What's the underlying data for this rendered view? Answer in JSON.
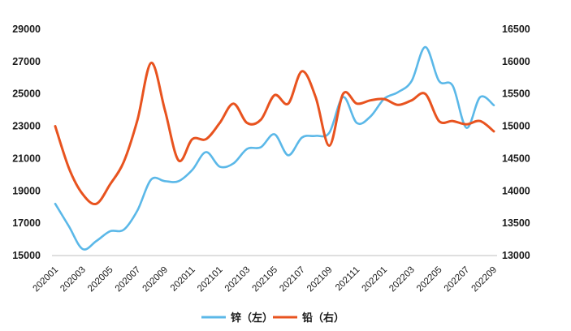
{
  "chart_data": {
    "type": "line",
    "title": "",
    "x": [
      "202001",
      "202002",
      "202003",
      "202004",
      "202005",
      "202006",
      "202007",
      "202008",
      "202009",
      "202010",
      "202011",
      "202012",
      "202101",
      "202102",
      "202103",
      "202104",
      "202105",
      "202106",
      "202107",
      "202108",
      "202109",
      "202110",
      "202111",
      "202112",
      "202201",
      "202202",
      "202203",
      "202204",
      "202205",
      "202206",
      "202207",
      "202208",
      "202209"
    ],
    "x_tick_labels": [
      "202001",
      "202003",
      "202005",
      "202007",
      "202009",
      "202011",
      "202101",
      "202103",
      "202105",
      "202107",
      "202109",
      "202111",
      "202201",
      "202203",
      "202205",
      "202207",
      "202209"
    ],
    "left_axis": {
      "min": 15000,
      "max": 29000,
      "ticks": [
        "15000",
        "17000",
        "19000",
        "21000",
        "23000",
        "25000",
        "27000",
        "29000"
      ]
    },
    "right_axis": {
      "min": 13000,
      "max": 16500,
      "ticks": [
        "13000",
        "13500",
        "14000",
        "14500",
        "15000",
        "15500",
        "16000",
        "16500"
      ]
    },
    "grid": false,
    "legend_position": "bottom",
    "series": [
      {
        "name": "锌（左）",
        "axis": "left",
        "color": "#5bb8e8",
        "values": [
          18200,
          16800,
          15400,
          15900,
          16500,
          16600,
          17800,
          19700,
          19600,
          19600,
          20300,
          21400,
          20500,
          20700,
          21600,
          21700,
          22500,
          21200,
          22300,
          22400,
          22600,
          24800,
          23200,
          23600,
          24700,
          25100,
          25800,
          27900,
          25800,
          25500,
          22900,
          24800,
          24300
        ]
      },
      {
        "name": "铅（右）",
        "axis": "right",
        "color": "#e8531f",
        "values": [
          15000,
          14350,
          13950,
          13800,
          14100,
          14450,
          15100,
          15980,
          15250,
          14470,
          14800,
          14800,
          15050,
          15350,
          15050,
          15100,
          15480,
          15350,
          15850,
          15450,
          14700,
          15500,
          15350,
          15400,
          15420,
          15330,
          15400,
          15500,
          15080,
          15080,
          15030,
          15080,
          14920
        ]
      }
    ]
  }
}
